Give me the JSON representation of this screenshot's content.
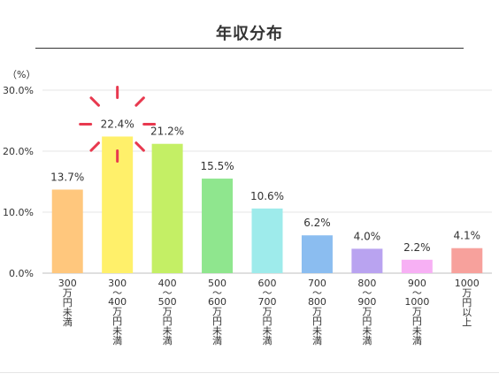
{
  "chart_data": {
    "type": "bar",
    "title": "年収分布",
    "ylabel": "（%）",
    "ylim": [
      0,
      30
    ],
    "yticks": [
      "0.0%",
      "10.0%",
      "20.0%",
      "30.0%"
    ],
    "grid": true,
    "categories": [
      [
        "300",
        "万",
        "円",
        "未",
        "満"
      ],
      [
        "300",
        "〜",
        "400",
        "万",
        "円",
        "未",
        "満"
      ],
      [
        "400",
        "〜",
        "500",
        "万",
        "円",
        "未",
        "満"
      ],
      [
        "500",
        "〜",
        "600",
        "万",
        "円",
        "未",
        "満"
      ],
      [
        "600",
        "〜",
        "700",
        "万",
        "円",
        "未",
        "満"
      ],
      [
        "700",
        "〜",
        "800",
        "万",
        "円",
        "未",
        "満"
      ],
      [
        "800",
        "〜",
        "900",
        "万",
        "円",
        "未",
        "満"
      ],
      [
        "900",
        "〜",
        "1000",
        "万",
        "円",
        "未",
        "満"
      ],
      [
        "1000",
        "万",
        "円",
        "以",
        "上"
      ]
    ],
    "values": [
      13.7,
      22.4,
      21.2,
      15.5,
      10.6,
      6.2,
      4.0,
      2.2,
      4.1
    ],
    "data_labels": [
      "13.7%",
      "22.4%",
      "21.2%",
      "15.5%",
      "10.6%",
      "6.2%",
      "4.0%",
      "2.2%",
      "4.1%"
    ],
    "colors": [
      "#ffc77d",
      "#fff06a",
      "#c4ef65",
      "#8fe68e",
      "#9eebeb",
      "#8bbdf0",
      "#b9a3f0",
      "#f7b0f4",
      "#f7a19c"
    ],
    "highlight_index": 1,
    "highlight_color": "#e8394f",
    "highlight_icon": "sparkle-burst-icon"
  }
}
